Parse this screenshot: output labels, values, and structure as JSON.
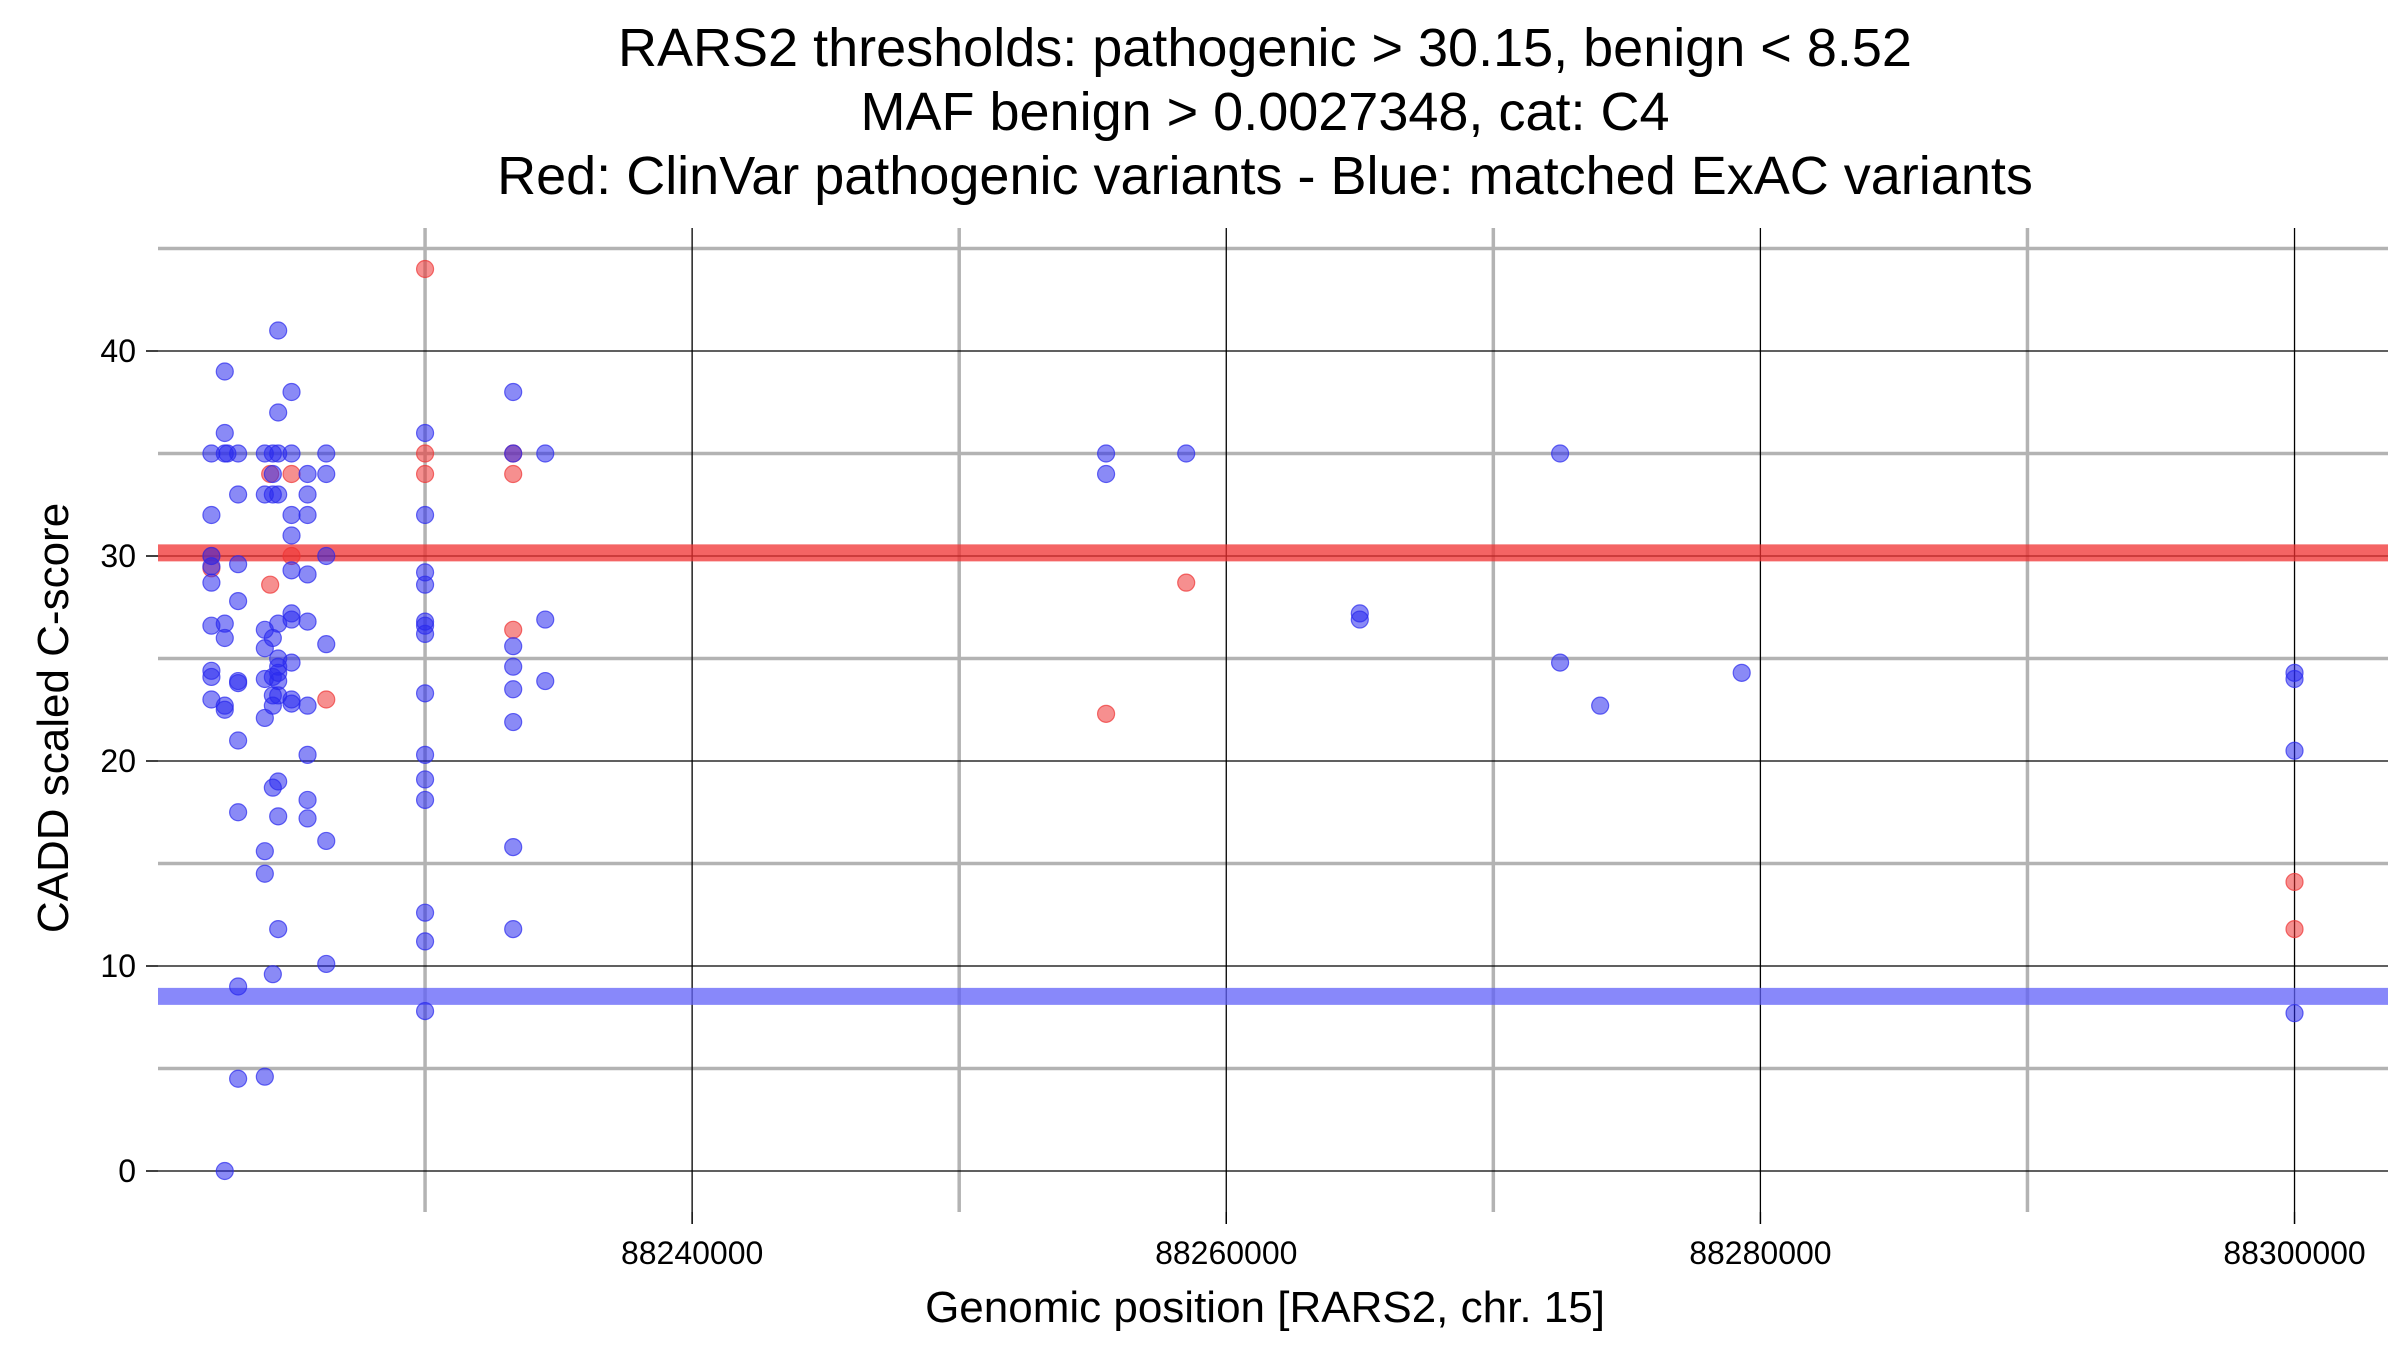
{
  "chart_data": {
    "type": "scatter",
    "title_lines": [
      "RARS2 thresholds: pathogenic > 30.15, benign < 8.52",
      "MAF benign > 0.0027348, cat: C4",
      "Red: ClinVar pathogenic variants - Blue: matched ExAC variants"
    ],
    "xlabel": "Genomic position [RARS2, chr. 15]",
    "ylabel": "CADD scaled C-score",
    "xlim": [
      88220000,
      88303500
    ],
    "ylim": [
      -2,
      46
    ],
    "x_ticks": [
      88240000,
      88260000,
      88280000,
      88300000
    ],
    "x_tick_labels": [
      "88240000",
      "88260000",
      "88280000",
      "88300000"
    ],
    "x_minor_ticks": [
      88230000,
      88250000,
      88270000,
      88290000
    ],
    "y_ticks": [
      0,
      10,
      20,
      30,
      40
    ],
    "y_tick_labels": [
      "0",
      "10",
      "20",
      "30",
      "40"
    ],
    "y_minor_ticks": [
      5,
      15,
      25,
      35,
      45
    ],
    "grid": true,
    "thresholds": [
      {
        "name": "pathogenic",
        "value": 30.15,
        "color": "#f03030"
      },
      {
        "name": "benign",
        "value": 8.52,
        "color": "#6060f8"
      }
    ],
    "series": [
      {
        "color": "#ee3333",
        "points": [
          [
            88222000,
            30.0
          ],
          [
            88222000,
            29.4
          ],
          [
            88224200,
            34.0
          ],
          [
            88224200,
            28.6
          ],
          [
            88225000,
            30.0
          ],
          [
            88225000,
            34.0
          ],
          [
            88226300,
            23.0
          ],
          [
            88230000,
            44.0
          ],
          [
            88230000,
            35.0
          ],
          [
            88230000,
            34.0
          ],
          [
            88233300,
            35.0
          ],
          [
            88233300,
            34.0
          ],
          [
            88233300,
            26.4
          ],
          [
            88255500,
            22.3
          ],
          [
            88258500,
            28.7
          ],
          [
            88300000,
            14.1
          ],
          [
            88300000,
            11.8
          ]
        ]
      },
      {
        "color": "#2a2aee",
        "points": [
          [
            88222000,
            35.0
          ],
          [
            88222000,
            32.0
          ],
          [
            88222000,
            30.0
          ],
          [
            88222000,
            29.5
          ],
          [
            88222000,
            28.7
          ],
          [
            88222000,
            26.6
          ],
          [
            88222000,
            24.4
          ],
          [
            88222000,
            24.1
          ],
          [
            88222000,
            23.0
          ],
          [
            88222500,
            39.0
          ],
          [
            88222500,
            36.0
          ],
          [
            88222500,
            35.0
          ],
          [
            88222500,
            26.7
          ],
          [
            88222500,
            26.0
          ],
          [
            88222500,
            22.7
          ],
          [
            88222500,
            22.5
          ],
          [
            88222500,
            0.0
          ],
          [
            88222600,
            35.0
          ],
          [
            88223000,
            35.0
          ],
          [
            88223000,
            33.0
          ],
          [
            88223000,
            29.6
          ],
          [
            88223000,
            27.8
          ],
          [
            88223000,
            23.9
          ],
          [
            88223000,
            23.8
          ],
          [
            88223000,
            21.0
          ],
          [
            88223000,
            17.5
          ],
          [
            88223000,
            9.0
          ],
          [
            88223000,
            4.5
          ],
          [
            88224000,
            35.0
          ],
          [
            88224000,
            33.0
          ],
          [
            88224000,
            26.4
          ],
          [
            88224000,
            25.5
          ],
          [
            88224000,
            24.0
          ],
          [
            88224000,
            22.1
          ],
          [
            88224000,
            15.6
          ],
          [
            88224000,
            14.5
          ],
          [
            88224000,
            4.6
          ],
          [
            88224300,
            35.0
          ],
          [
            88224300,
            34.0
          ],
          [
            88224300,
            33.0
          ],
          [
            88224300,
            26.0
          ],
          [
            88224300,
            24.1
          ],
          [
            88224300,
            23.2
          ],
          [
            88224300,
            22.7
          ],
          [
            88224300,
            18.7
          ],
          [
            88224300,
            9.6
          ],
          [
            88224500,
            41.0
          ],
          [
            88224500,
            37.0
          ],
          [
            88224500,
            35.0
          ],
          [
            88224500,
            33.0
          ],
          [
            88224500,
            26.7
          ],
          [
            88224500,
            25.0
          ],
          [
            88224500,
            24.6
          ],
          [
            88224500,
            24.3
          ],
          [
            88224500,
            23.9
          ],
          [
            88224500,
            23.2
          ],
          [
            88224500,
            19.0
          ],
          [
            88224500,
            17.3
          ],
          [
            88224500,
            11.8
          ],
          [
            88225000,
            38.0
          ],
          [
            88225000,
            35.0
          ],
          [
            88225000,
            32.0
          ],
          [
            88225000,
            31.0
          ],
          [
            88225000,
            29.3
          ],
          [
            88225000,
            27.2
          ],
          [
            88225000,
            26.9
          ],
          [
            88225000,
            24.8
          ],
          [
            88225000,
            23.0
          ],
          [
            88225000,
            22.8
          ],
          [
            88225600,
            34.0
          ],
          [
            88225600,
            33.0
          ],
          [
            88225600,
            32.0
          ],
          [
            88225600,
            29.1
          ],
          [
            88225600,
            26.8
          ],
          [
            88225600,
            22.7
          ],
          [
            88225600,
            20.3
          ],
          [
            88225600,
            18.1
          ],
          [
            88225600,
            17.2
          ],
          [
            88226300,
            35.0
          ],
          [
            88226300,
            34.0
          ],
          [
            88226300,
            30.0
          ],
          [
            88226300,
            25.7
          ],
          [
            88226300,
            16.1
          ],
          [
            88226300,
            10.1
          ],
          [
            88230000,
            36.0
          ],
          [
            88230000,
            32.0
          ],
          [
            88230000,
            29.2
          ],
          [
            88230000,
            28.6
          ],
          [
            88230000,
            26.8
          ],
          [
            88230000,
            26.6
          ],
          [
            88230000,
            26.2
          ],
          [
            88230000,
            23.3
          ],
          [
            88230000,
            20.3
          ],
          [
            88230000,
            19.1
          ],
          [
            88230000,
            18.1
          ],
          [
            88230000,
            12.6
          ],
          [
            88230000,
            11.2
          ],
          [
            88230000,
            7.8
          ],
          [
            88233300,
            38.0
          ],
          [
            88233300,
            35.0
          ],
          [
            88233300,
            25.6
          ],
          [
            88233300,
            24.6
          ],
          [
            88233300,
            23.5
          ],
          [
            88233300,
            21.9
          ],
          [
            88233300,
            15.8
          ],
          [
            88233300,
            11.8
          ],
          [
            88234500,
            35.0
          ],
          [
            88234500,
            26.9
          ],
          [
            88234500,
            23.9
          ],
          [
            88255500,
            35.0
          ],
          [
            88255500,
            34.0
          ],
          [
            88258500,
            35.0
          ],
          [
            88265000,
            27.2
          ],
          [
            88265000,
            26.9
          ],
          [
            88272500,
            35.0
          ],
          [
            88272500,
            24.8
          ],
          [
            88274000,
            22.7
          ],
          [
            88279300,
            24.3
          ],
          [
            88300000,
            24.3
          ],
          [
            88300000,
            24.0
          ],
          [
            88300000,
            20.5
          ],
          [
            88300000,
            7.7
          ]
        ]
      }
    ]
  }
}
